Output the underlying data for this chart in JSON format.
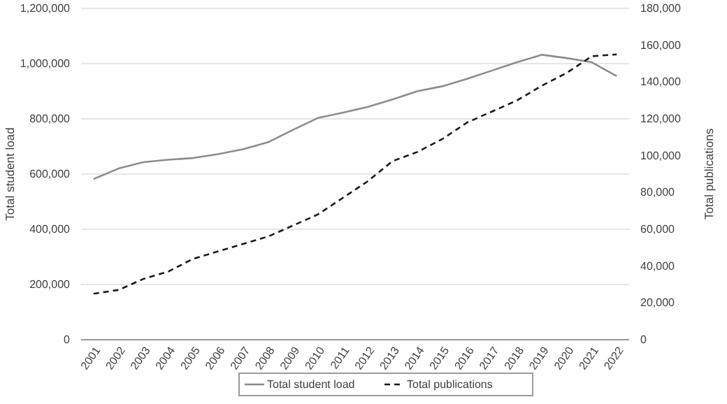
{
  "chart_data": {
    "type": "line",
    "categories": [
      "2001",
      "2002",
      "2003",
      "2004",
      "2005",
      "2006",
      "2007",
      "2008",
      "2009",
      "2010",
      "2011",
      "2012",
      "2013",
      "2014",
      "2015",
      "2016",
      "2017",
      "2018",
      "2019",
      "2020",
      "2021",
      "2022"
    ],
    "series": [
      {
        "name": "Total student load",
        "color": "#8c8c8c",
        "line_style": "solid",
        "values": [
          582000,
          620000,
          643000,
          652000,
          658000,
          672000,
          690000,
          715000,
          760000,
          803000,
          822000,
          843000,
          870000,
          900000,
          918000,
          945000,
          975000,
          1005000,
          1032000,
          1020000,
          1005000,
          955000
        ]
      },
      {
        "name": "Total publications",
        "color": "#1a1a1a",
        "line_style": "dashed",
        "axis": "y2",
        "values": [
          25000,
          27000,
          33000,
          37000,
          44000,
          48000,
          52000,
          56000,
          62000,
          68000,
          77000,
          86000,
          97000,
          102000,
          109000,
          118000,
          124000,
          130000,
          138000,
          145000,
          154000,
          155000
        ]
      }
    ],
    "ylabel": "Total student load",
    "y2label": "Total publications",
    "ylim": [
      0,
      1200000
    ],
    "yticks": [
      {
        "value": 0,
        "label": "0"
      },
      {
        "value": 200000,
        "label": "200,000"
      },
      {
        "value": 400000,
        "label": "400,000"
      },
      {
        "value": 600000,
        "label": "600,000"
      },
      {
        "value": 800000,
        "label": "800,000"
      },
      {
        "value": 1000000,
        "label": "1,000,000"
      },
      {
        "value": 1200000,
        "label": "1,200,000"
      }
    ],
    "y2lim": [
      0,
      180000
    ],
    "y2ticks": [
      {
        "value": 0,
        "label": "0"
      },
      {
        "value": 20000,
        "label": "20,000"
      },
      {
        "value": 40000,
        "label": "40,000"
      },
      {
        "value": 60000,
        "label": "60,000"
      },
      {
        "value": 80000,
        "label": "80,000"
      },
      {
        "value": 100000,
        "label": "100,000"
      },
      {
        "value": 120000,
        "label": "120,000"
      },
      {
        "value": 140000,
        "label": "140,000"
      },
      {
        "value": 160000,
        "label": "160,000"
      },
      {
        "value": 180000,
        "label": "180,000"
      }
    ],
    "grid": "y",
    "legend": "bottom",
    "marker": "none"
  }
}
